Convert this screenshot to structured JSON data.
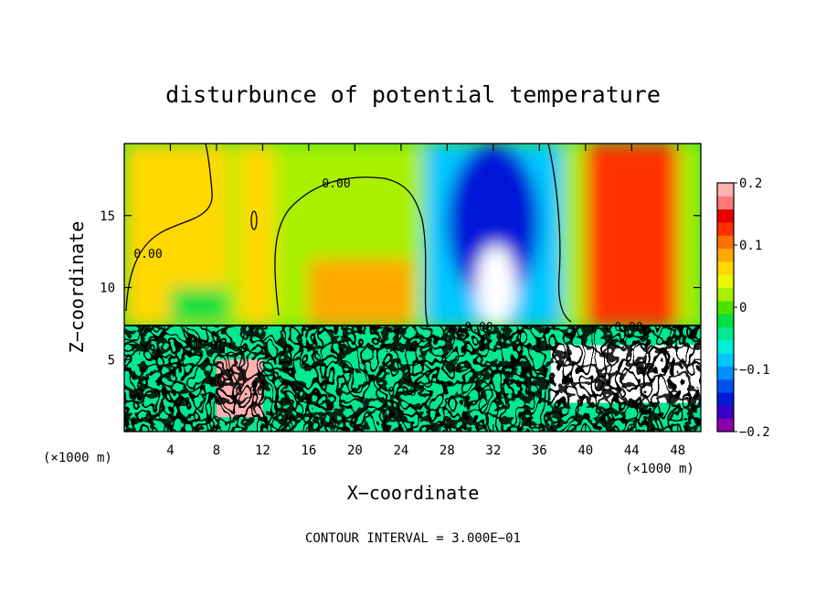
{
  "chart_data": {
    "type": "heatmap",
    "title": "disturbunce of potential temperature",
    "xlabel": "X−coordinate",
    "ylabel": "Z−coordinate",
    "x_unit_left": "(×1000 m)",
    "x_unit_right": "(×1000 m)",
    "footer": "CONTOUR INTERVAL = 3.000E−01",
    "xlim": [
      0,
      50
    ],
    "ylim": [
      0,
      20
    ],
    "x_ticks": [
      4,
      8,
      12,
      16,
      20,
      24,
      28,
      32,
      36,
      40,
      44,
      48
    ],
    "y_ticks": [
      5,
      10,
      15
    ],
    "grid": false,
    "contour_labels": [
      "0.00",
      "0.00",
      "0.00",
      "0.00",
      "0.00",
      "0.00",
      "0.00"
    ],
    "contour_interval": 0.3,
    "colorbar": {
      "ticks": [
        {
          "value": 0.2,
          "label": "0.2"
        },
        {
          "value": 0.1,
          "label": "0.1"
        },
        {
          "value": 0.0,
          "label": "0"
        },
        {
          "value": -0.1,
          "label": "−0.1"
        },
        {
          "value": -0.2,
          "label": "−0.2"
        }
      ],
      "colors": [
        "#8b00a8",
        "#3a00c4",
        "#0018d8",
        "#0050f0",
        "#0090ff",
        "#00c8ff",
        "#00f0d8",
        "#00e890",
        "#00e040",
        "#50e000",
        "#a8f000",
        "#e8f800",
        "#ffd800",
        "#ffa800",
        "#ff7000",
        "#ff3000",
        "#e80000",
        "#ff7878",
        "#ffb0b0"
      ]
    },
    "regions": [
      {
        "x0": 0,
        "x1": 50,
        "z0": 7.3,
        "z1": 20,
        "value": 0.03
      },
      {
        "x0": 0,
        "x1": 9,
        "z0": 7.3,
        "z1": 20,
        "value": 0.06
      },
      {
        "x0": 4,
        "x1": 9,
        "z0": 7.5,
        "z1": 10,
        "value": -0.03
      },
      {
        "x0": 10,
        "x1": 13,
        "z0": 7.3,
        "z1": 20,
        "value": 0.06
      },
      {
        "x0": 16,
        "x1": 25,
        "z0": 7.3,
        "z1": 12,
        "value": 0.09
      },
      {
        "x0": 26,
        "x1": 38,
        "z0": 7.3,
        "z1": 20,
        "value": -0.09
      },
      {
        "x0": 28,
        "x1": 36,
        "z0": 9,
        "z1": 20,
        "value": -0.15
      },
      {
        "x0": 30.5,
        "x1": 34,
        "z0": 7.3,
        "z1": 13,
        "value": -0.3
      },
      {
        "x0": 40,
        "x1": 48,
        "z0": 7.3,
        "z1": 20,
        "value": 0.12
      },
      {
        "x0": 0,
        "x1": 50,
        "z0": 0,
        "z1": 7.3,
        "value": -0.05
      },
      {
        "x0": 37,
        "x1": 50,
        "z0": 2,
        "z1": 6,
        "value": -0.25
      },
      {
        "x0": 8,
        "x1": 12,
        "z0": 1,
        "z1": 5,
        "value": 0.2
      }
    ]
  }
}
